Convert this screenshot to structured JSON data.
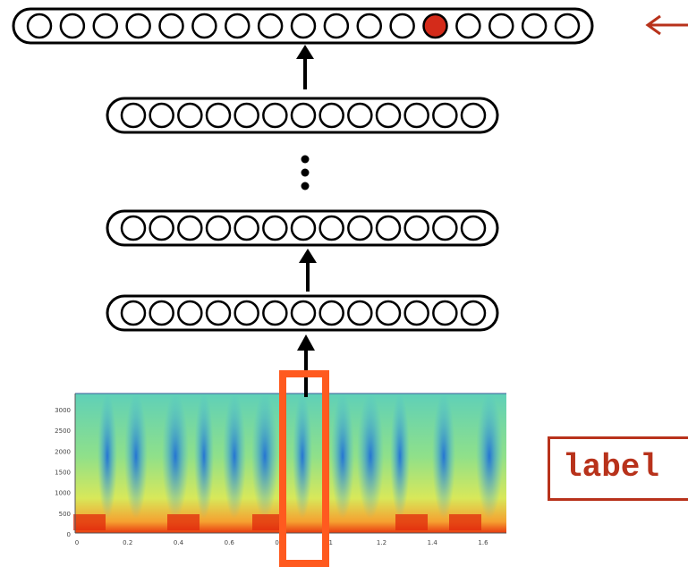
{
  "diagram": {
    "layers": [
      {
        "id": "output",
        "units": 17,
        "active_unit": 12
      },
      {
        "id": "hidden-top",
        "units": 13
      },
      {
        "id": "hidden-middle",
        "units": 13
      },
      {
        "id": "hidden-bottom",
        "units": 13
      }
    ],
    "spectrogram": {
      "y_ticks": [
        "3000",
        "2500",
        "2000",
        "1500",
        "1000",
        "500",
        "0"
      ],
      "x_ticks": [
        "0",
        "0.2",
        "0.4",
        "0.6",
        "0.8",
        "1",
        "1.2",
        "1.4",
        "1.6"
      ]
    },
    "label_box": {
      "text": "label"
    },
    "colors": {
      "stroke": "#000000",
      "active_unit": "#d42b1a",
      "frame_highlight": "#ff5a1f",
      "label_accent": "#b8321b"
    }
  }
}
